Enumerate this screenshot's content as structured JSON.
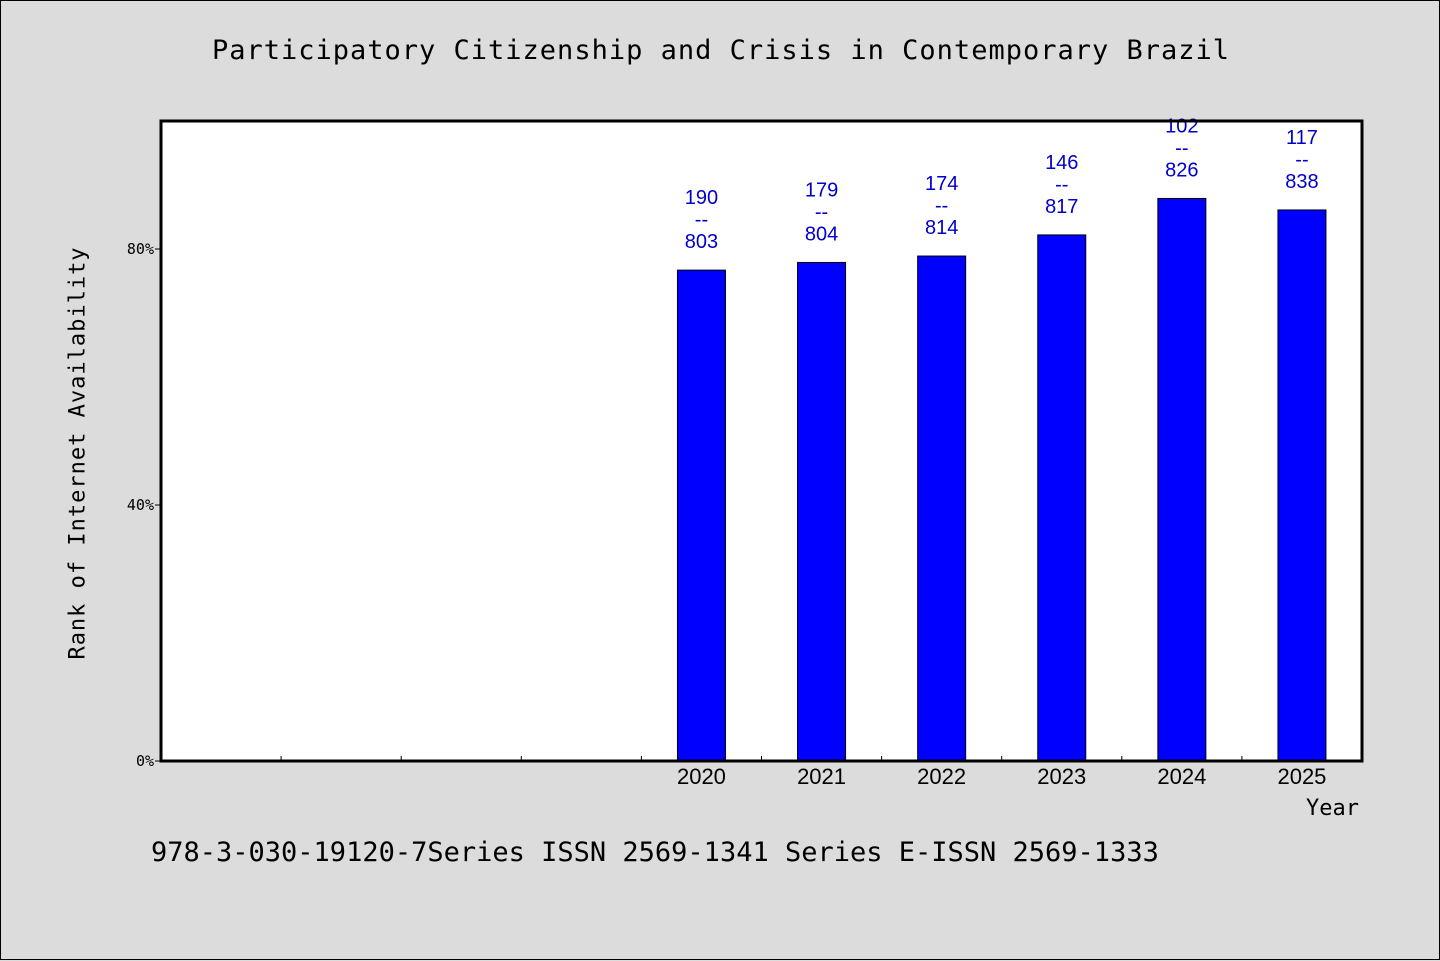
{
  "chart_data": {
    "type": "bar",
    "title": "Participatory Citizenship and Crisis in Contemporary Brazil",
    "xlabel": "Year",
    "ylabel": "Rank of Internet Availability",
    "ylim": [
      0,
      100
    ],
    "yticks": [
      "0%",
      "40%",
      "80%"
    ],
    "categories": [
      "2020",
      "2021",
      "2022",
      "2023",
      "2024",
      "2025"
    ],
    "values": [
      76.7,
      77.9,
      78.9,
      82.2,
      87.9,
      86.1
    ],
    "labels": [
      [
        "190",
        "--",
        "803"
      ],
      [
        "179",
        "--",
        "804"
      ],
      [
        "174",
        "--",
        "814"
      ],
      [
        "146",
        "--",
        "817"
      ],
      [
        "102",
        "--",
        "826"
      ],
      [
        "117",
        "--",
        "838"
      ]
    ],
    "bar_color": "#0000ff",
    "label_color": "#0000cc",
    "grid": false
  },
  "footer": "978-3-030-19120-7Series ISSN 2569-1341 Series E-ISSN 2569-1333"
}
